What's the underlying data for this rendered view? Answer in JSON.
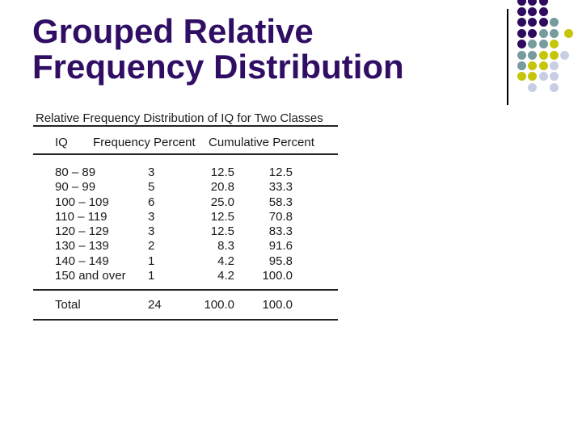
{
  "slide": {
    "title": "Grouped Relative Frequency Distribution",
    "title_color": "#2F0E64",
    "background_color": "#FFFFFF"
  },
  "table": {
    "caption": "Relative Frequency Distribution of IQ for Two Classes",
    "columns": [
      "IQ",
      "Frequency",
      "Percent",
      "Cumulative Percent"
    ],
    "rows": [
      {
        "iq": "80 – 89",
        "frequency": "3",
        "percent": "12.5",
        "cumulative_percent": "12.5"
      },
      {
        "iq": "90 – 99",
        "frequency": "5",
        "percent": "20.8",
        "cumulative_percent": "33.3"
      },
      {
        "iq": "100 – 109",
        "frequency": "6",
        "percent": "25.0",
        "cumulative_percent": "58.3"
      },
      {
        "iq": "110 – 119",
        "frequency": "3",
        "percent": "12.5",
        "cumulative_percent": "70.8"
      },
      {
        "iq": "120 – 129",
        "frequency": "3",
        "percent": "12.5",
        "cumulative_percent": "83.3"
      },
      {
        "iq": "130 – 139",
        "frequency": "2",
        "percent": "8.3",
        "cumulative_percent": "91.6"
      },
      {
        "iq": "140 – 149",
        "frequency": "1",
        "percent": "4.2",
        "cumulative_percent": "95.8"
      },
      {
        "iq": "150 and over",
        "frequency": "1",
        "percent": "4.2",
        "cumulative_percent": "100.0"
      }
    ],
    "total": {
      "label": "Total",
      "frequency": "24",
      "percent": "100.0",
      "cumulative_percent": "100.0"
    }
  },
  "decor": {
    "line_color": "#000000",
    "dot_colors": {
      "P": "#2E0B5E",
      "T": "#779C9E",
      "Y": "#C5C609",
      "L": "#C9CEE4"
    },
    "dot_pattern": [
      [
        [
          0,
          "P"
        ],
        [
          1,
          "P"
        ],
        [
          2,
          "P"
        ]
      ],
      [
        [
          0,
          "P"
        ],
        [
          1,
          "P"
        ],
        [
          2,
          "P"
        ]
      ],
      [
        [
          0,
          "P"
        ],
        [
          1,
          "P"
        ],
        [
          2,
          "P"
        ],
        [
          3,
          "T"
        ]
      ],
      [
        [
          0,
          "P"
        ],
        [
          1,
          "P"
        ],
        [
          2,
          "T"
        ],
        [
          3,
          "T"
        ],
        [
          4.35,
          "Y"
        ]
      ],
      [
        [
          0,
          "P"
        ],
        [
          1,
          "T"
        ],
        [
          2,
          "T"
        ],
        [
          3,
          "Y"
        ]
      ],
      [
        [
          0,
          "T"
        ],
        [
          1,
          "T"
        ],
        [
          2,
          "Y"
        ],
        [
          3,
          "Y"
        ],
        [
          4,
          "L"
        ]
      ],
      [
        [
          0,
          "T"
        ],
        [
          1,
          "Y"
        ],
        [
          2,
          "Y"
        ],
        [
          3,
          "L"
        ]
      ],
      [
        [
          0,
          "Y"
        ],
        [
          1,
          "Y"
        ],
        [
          2,
          "L"
        ],
        [
          3,
          "L"
        ]
      ],
      [
        [
          1,
          "L"
        ],
        [
          3,
          "L"
        ]
      ]
    ]
  }
}
